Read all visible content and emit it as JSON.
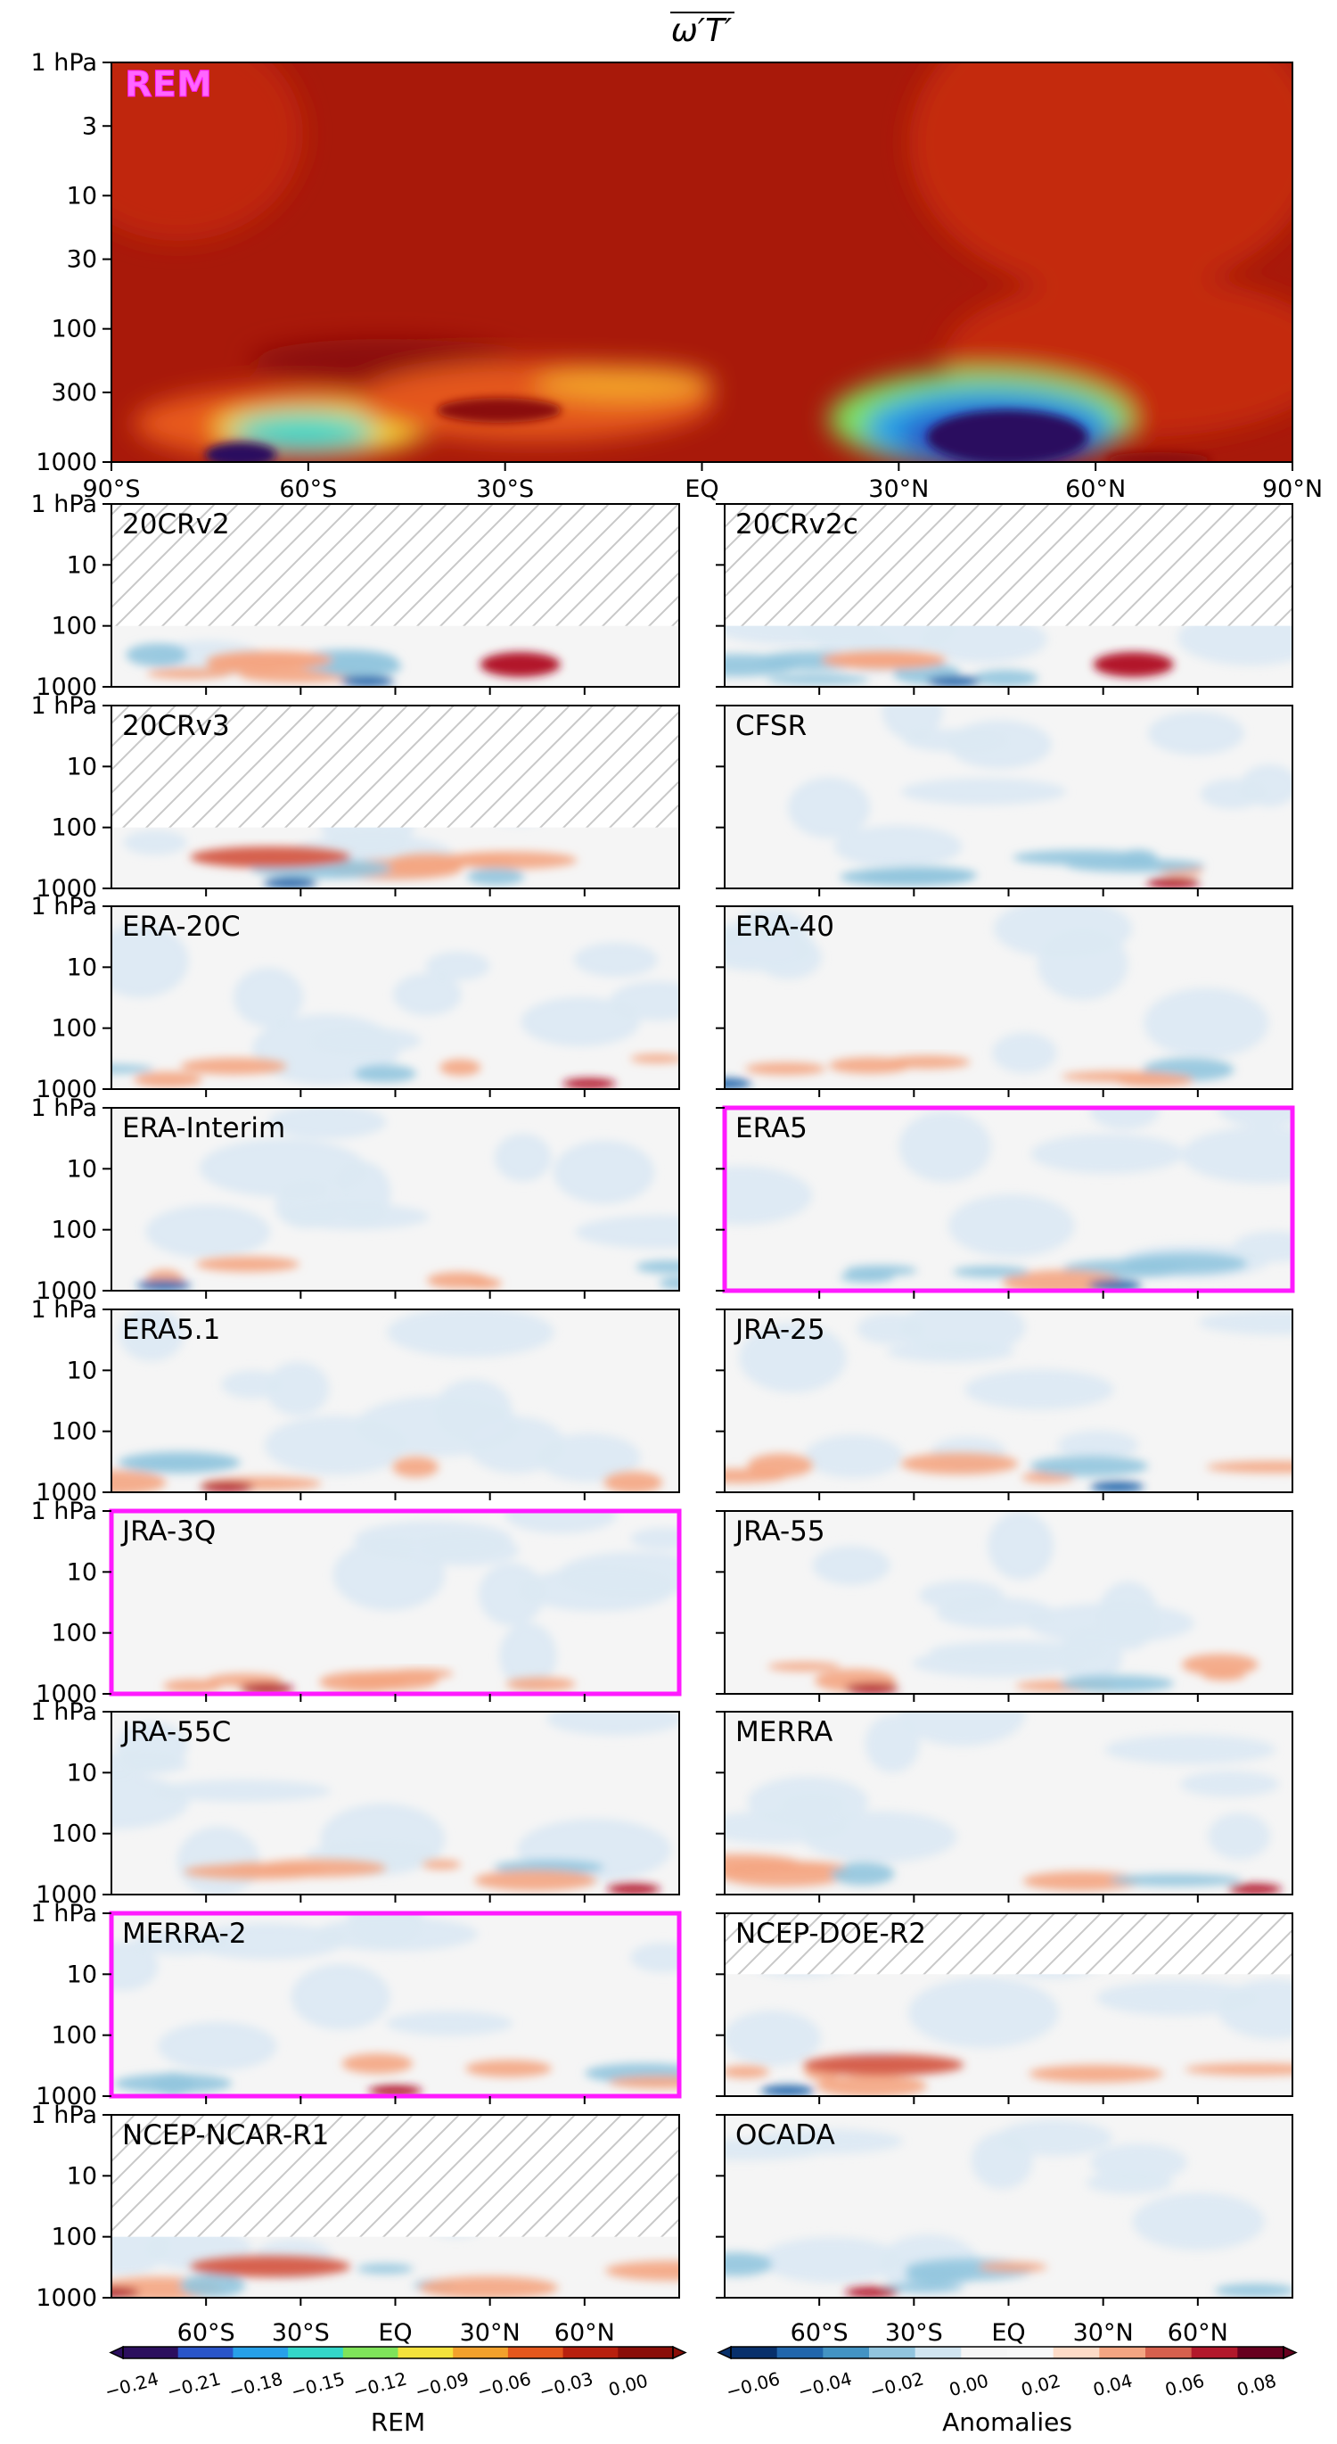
{
  "chart_data": {
    "type": "heatmap",
    "title": "ω′T′",
    "x_tick_labels": [
      "90°S",
      "60°S",
      "30°S",
      "EQ",
      "30°N",
      "60°N",
      "90°N"
    ],
    "panel_x_tick_labels": [
      "60°S",
      "30°S",
      "EQ",
      "30°N",
      "60°N"
    ],
    "y_tick_labels": [
      "1 hPa",
      "3",
      "10",
      "30",
      "100",
      "300",
      "1000"
    ],
    "panel_y_tick_labels": [
      "1 hPa",
      "10",
      "100",
      "1000"
    ],
    "x_range": [
      -90,
      90
    ],
    "y_range_hpa": [
      1000,
      1
    ],
    "y_scale": "log",
    "top_panel": {
      "label": "REM"
    },
    "panels": [
      {
        "name": "20CRv2",
        "highlight": false,
        "hatch_top_hpa": 100
      },
      {
        "name": "20CRv2c",
        "highlight": false,
        "hatch_top_hpa": 100
      },
      {
        "name": "20CRv3",
        "highlight": false,
        "hatch_top_hpa": 100
      },
      {
        "name": "CFSR",
        "highlight": false
      },
      {
        "name": "ERA-20C",
        "highlight": false
      },
      {
        "name": "ERA-40",
        "highlight": false
      },
      {
        "name": "ERA-Interim",
        "highlight": false
      },
      {
        "name": "ERA5",
        "highlight": true
      },
      {
        "name": "ERA5.1",
        "highlight": false
      },
      {
        "name": "JRA-25",
        "highlight": false
      },
      {
        "name": "JRA-3Q",
        "highlight": true
      },
      {
        "name": "JRA-55",
        "highlight": false
      },
      {
        "name": "JRA-55C",
        "highlight": false
      },
      {
        "name": "MERRA",
        "highlight": false
      },
      {
        "name": "MERRA-2",
        "highlight": true
      },
      {
        "name": "NCEP-DOE-R2",
        "highlight": false,
        "hatch_top_hpa": 10
      },
      {
        "name": "NCEP-NCAR-R1",
        "highlight": false,
        "hatch_top_hpa": 100
      },
      {
        "name": "OCADA",
        "highlight": false
      }
    ],
    "colorbars": [
      {
        "label": "REM",
        "ticks": [
          "−0.24",
          "−0.21",
          "−0.18",
          "−0.15",
          "−0.12",
          "−0.09",
          "−0.06",
          "−0.03",
          "0.00"
        ],
        "colors": [
          "#2c0f5e",
          "#2a55c8",
          "#27a0e8",
          "#33d6c8",
          "#7fe35a",
          "#f4e23c",
          "#f3a12b",
          "#e4571c",
          "#b8200e",
          "#8a0e08"
        ]
      },
      {
        "label": "Anomalies",
        "ticks": [
          "−0.06",
          "−0.04",
          "−0.02",
          "0.00",
          "0.02",
          "0.04",
          "0.06",
          "0.08"
        ],
        "colors": [
          "#08306b",
          "#2166ac",
          "#4393c3",
          "#92c5de",
          "#d1e5f0",
          "#f5f5f5",
          "#f7f7f7",
          "#fddbc7",
          "#f4a582",
          "#d6604d",
          "#b2182b",
          "#67001f"
        ]
      }
    ],
    "highlight_color": "#ff1aff"
  }
}
